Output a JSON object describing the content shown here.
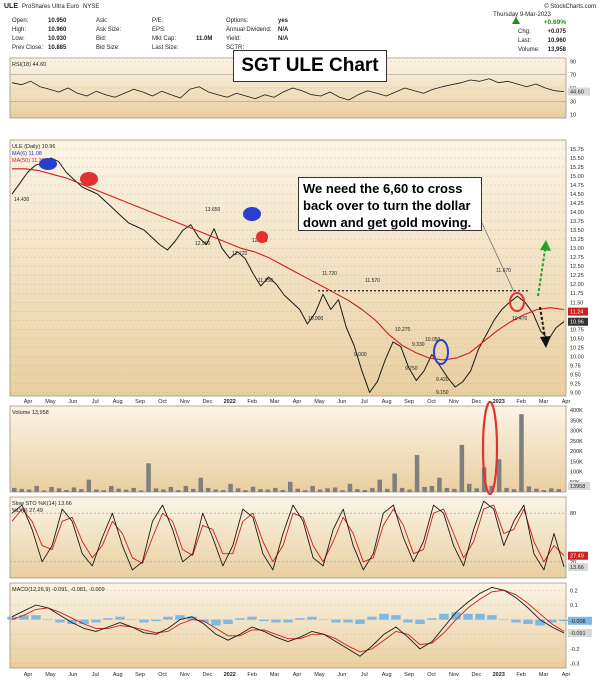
{
  "header": {
    "symbol": "ULE",
    "description": "ProShares Ultra Euro",
    "exchange": "NYSE",
    "credit": "© StockCharts.com",
    "date": "Thursday  9-Mar-2023",
    "quotes": [
      {
        "label": "Open:",
        "value": "10.950"
      },
      {
        "label": "High:",
        "value": "10.960"
      },
      {
        "label": "Low:",
        "value": "10.930"
      },
      {
        "label": "Prev Close:",
        "value": "10.885"
      },
      {
        "label": "Ask:",
        "value": ""
      },
      {
        "label": "Ask Size:",
        "value": ""
      },
      {
        "label": "Bid:",
        "value": ""
      },
      {
        "label": "Bid Size:",
        "value": ""
      },
      {
        "label": "P/E:",
        "value": ""
      },
      {
        "label": "EPS:",
        "value": ""
      },
      {
        "label": "Mkt Cap:",
        "value": "11.0M"
      },
      {
        "label": "Last Size:",
        "value": ""
      },
      {
        "label": "Options:",
        "value": "yes"
      },
      {
        "label": "Annual Dividend:",
        "value": "N/A"
      },
      {
        "label": "Yield:",
        "value": "N/A"
      },
      {
        "label": "SCTR:",
        "value": ""
      }
    ],
    "change_pct": "+0.69%",
    "right_quotes": [
      {
        "label": "Chg:",
        "value": "+0.075"
      },
      {
        "label": "Last:",
        "value": "10.960"
      },
      {
        "label": "Volume:",
        "value": "13,958"
      }
    ]
  },
  "annotations": {
    "title": "SGT ULE Chart",
    "note": "We need the 6,60 to cross back over to turn the dollar down and get gold moving."
  },
  "colors": {
    "panel_bg_top": "#fbf4e6",
    "panel_bg_bottom": "#e9cfa0",
    "price": "#1a1a1a",
    "ma50": "#cc1f1f",
    "ma6": "#1f3fcc",
    "volume_bar": "#7f7f7f",
    "highlight_red": "#e53030",
    "highlight_blue": "#2a3fd0",
    "arrow_up": "#22a322",
    "macd_hist": "#7fb8e0",
    "ticker_fill": "#d8d8d8"
  },
  "chart_data": [
    {
      "panel": "rsi",
      "type": "line",
      "legend": [
        "RSI(18) 44.60"
      ],
      "y_ticks": [
        90,
        70,
        50,
        30,
        10
      ],
      "ylim": [
        5,
        95
      ],
      "last_value_label": "44.60",
      "series": [
        {
          "name": "RSI(18)",
          "values": [
            58,
            55,
            60,
            52,
            48,
            44,
            50,
            42,
            38,
            45,
            40,
            36,
            42,
            48,
            44,
            38,
            45,
            40,
            35,
            48,
            52,
            44,
            40,
            36,
            42,
            38,
            34,
            40,
            36,
            44,
            50,
            46,
            40,
            38,
            44,
            36,
            32,
            40,
            46,
            42,
            38,
            44,
            50,
            46,
            42,
            48,
            52,
            55,
            58,
            62,
            60,
            64,
            58,
            60,
            56,
            52,
            56,
            50,
            46,
            44.6
          ]
        }
      ]
    },
    {
      "panel": "price",
      "type": "line",
      "legend": [
        "ULE (Daily) 10.96",
        "MA(6) 11.08",
        "MA(50) 11.30"
      ],
      "x_ticks": [
        "Apr",
        "May",
        "Jun",
        "Jul",
        "Aug",
        "Sep",
        "Oct",
        "Nov",
        "Dec",
        "2022",
        "Feb",
        "Mar",
        "Apr",
        "May",
        "Jun",
        "Jul",
        "Aug",
        "Sep",
        "Oct",
        "Nov",
        "Dec",
        "2023",
        "Feb",
        "Mar",
        "Apr"
      ],
      "y_ticks": [
        "15.75",
        "15.50",
        "15.25",
        "15.00",
        "14.75",
        "14.50",
        "14.25",
        "14.00",
        "13.75",
        "13.50",
        "13.25",
        "13.00",
        "12.75",
        "12.50",
        "12.25",
        "12.00",
        "11.75",
        "11.50",
        "11.25",
        "11.00",
        "10.75",
        "10.50",
        "10.25",
        "10.00",
        "9.75",
        "9.50",
        "9.25",
        "9.00"
      ],
      "ylim": [
        8.9,
        16.0
      ],
      "point_labels": [
        "14.430",
        "13.650",
        "13.540",
        "12.950",
        "12.720",
        "12.710",
        "11.950",
        "11.720",
        "11.570",
        "10.900",
        "10.275",
        "9.330",
        "9.000",
        "10.050",
        "9.750",
        "9.420",
        "9.150",
        "11.670",
        "10.470"
      ],
      "price_tags": [
        "11.24",
        "10.96"
      ],
      "series": [
        {
          "name": "ULE (Daily)",
          "values": [
            14.5,
            14.8,
            15.1,
            15.3,
            15.35,
            15.5,
            15.4,
            15.1,
            14.9,
            14.7,
            14.6,
            14.5,
            14.3,
            14.1,
            13.9,
            13.7,
            13.6,
            13.5,
            13.3,
            13.1,
            12.95,
            13.2,
            13.5,
            13.65,
            13.3,
            13.1,
            13.54,
            13.0,
            12.72,
            12.9,
            12.71,
            12.3,
            11.95,
            12.2,
            12.0,
            11.7,
            11.5,
            11.3,
            10.9,
            11.2,
            11.72,
            11.3,
            11.57,
            10.8,
            10.3,
            9.6,
            9.0,
            9.3,
            9.9,
            10.4,
            10.275,
            9.7,
            9.33,
            9.6,
            10.05,
            9.75,
            9.42,
            9.15,
            9.3,
            9.6,
            10.2,
            10.6,
            11.0,
            11.3,
            11.5,
            11.67,
            11.5,
            11.2,
            10.7,
            10.47,
            10.8,
            10.96
          ]
        },
        {
          "name": "MA(50)",
          "values": [
            15.2,
            15.2,
            15.15,
            15.05,
            14.95,
            14.8,
            14.65,
            14.5,
            14.35,
            14.2,
            14.05,
            13.9,
            13.75,
            13.6,
            13.45,
            13.3,
            13.15,
            13.0,
            12.9,
            12.75,
            12.55,
            12.35,
            12.15,
            11.95,
            11.75,
            11.55,
            11.3,
            11.0,
            10.6,
            10.3,
            10.1,
            9.95,
            9.9,
            9.95,
            10.1,
            10.4,
            10.7,
            10.95,
            11.15,
            11.3,
            11.35,
            11.3
          ]
        }
      ]
    },
    {
      "panel": "volume",
      "type": "bar",
      "legend": [
        "Volume 13,958"
      ],
      "y_ticks": [
        "400K",
        "350K",
        "300K",
        "250K",
        "200K",
        "150K",
        "100K",
        "50K"
      ],
      "ylim": [
        0,
        420000
      ],
      "last_value_label": "13958",
      "values": [
        20000,
        15000,
        12000,
        30000,
        8000,
        25000,
        18000,
        10000,
        22000,
        14000,
        60000,
        12000,
        9000,
        30000,
        16000,
        11000,
        20000,
        8000,
        140000,
        18000,
        12000,
        25000,
        9000,
        30000,
        15000,
        70000,
        20000,
        12000,
        10000,
        40000,
        18000,
        9000,
        26000,
        14000,
        12000,
        20000,
        10000,
        50000,
        16000,
        9000,
        30000,
        12000,
        18000,
        22000,
        9000,
        40000,
        14000,
        10000,
        20000,
        60000,
        15000,
        90000,
        20000,
        12000,
        180000,
        25000,
        30000,
        70000,
        20000,
        15000,
        230000,
        40000,
        18000,
        120000,
        30000,
        160000,
        20000,
        14000,
        380000,
        28000,
        16000,
        10000,
        18000,
        13958
      ]
    },
    {
      "panel": "slow-stochastic",
      "type": "line",
      "legend": [
        "Slow STO %K(14) 13.66",
        "%D(3) 27.49"
      ],
      "y_ticks": [
        80,
        20
      ],
      "ylim": [
        0,
        100
      ],
      "last_value_labels": [
        "27.49",
        "13.66"
      ],
      "series": [
        {
          "name": "%K(14)",
          "values": [
            80,
            90,
            60,
            20,
            40,
            85,
            70,
            30,
            15,
            50,
            80,
            40,
            10,
            20,
            70,
            90,
            60,
            20,
            30,
            80,
            50,
            15,
            40,
            85,
            75,
            30,
            10,
            55,
            90,
            70,
            25,
            15,
            60,
            85,
            40,
            10,
            30,
            80,
            90,
            50,
            20,
            45,
            90,
            80,
            40,
            15,
            60,
            95,
            85,
            40,
            70,
            90,
            30,
            10,
            55,
            13.66
          ]
        },
        {
          "name": "%D(3)",
          "values": [
            70,
            85,
            70,
            40,
            35,
            70,
            75,
            45,
            25,
            40,
            70,
            55,
            25,
            18,
            50,
            80,
            70,
            35,
            28,
            65,
            60,
            30,
            30,
            70,
            80,
            45,
            20,
            40,
            80,
            75,
            40,
            20,
            45,
            75,
            55,
            20,
            25,
            65,
            85,
            65,
            30,
            35,
            80,
            85,
            55,
            25,
            45,
            85,
            90,
            55,
            60,
            85,
            45,
            20,
            40,
            27.49
          ]
        }
      ]
    },
    {
      "panel": "macd",
      "type": "line",
      "legend": [
        "MACD(12,26,9) -0.091, -0.081, -0.009"
      ],
      "y_ticks": [
        0.2,
        0.1,
        0.0,
        -0.1,
        -0.2,
        -0.3
      ],
      "ylim": [
        -0.33,
        0.25
      ],
      "last_value_labels": [
        "-0.008",
        "-0.091"
      ],
      "series": [
        {
          "name": "MACD",
          "values": [
            0.02,
            0.06,
            0.1,
            0.08,
            0.03,
            -0.02,
            -0.06,
            -0.08,
            -0.05,
            -0.02,
            -0.05,
            -0.09,
            -0.1,
            -0.06,
            0.0,
            0.02,
            -0.03,
            -0.1,
            -0.14,
            -0.1,
            -0.05,
            -0.08,
            -0.12,
            -0.15,
            -0.12,
            -0.08,
            -0.1,
            -0.15,
            -0.2,
            -0.25,
            -0.18,
            -0.1,
            -0.05,
            -0.12,
            -0.2,
            -0.15,
            -0.05,
            0.05,
            0.12,
            0.18,
            0.22,
            0.2,
            0.15,
            0.08,
            0.0,
            -0.05,
            -0.091
          ]
        },
        {
          "name": "Signal",
          "values": [
            0.0,
            0.03,
            0.07,
            0.08,
            0.05,
            0.01,
            -0.03,
            -0.06,
            -0.06,
            -0.04,
            -0.05,
            -0.07,
            -0.09,
            -0.08,
            -0.03,
            0.0,
            -0.01,
            -0.06,
            -0.11,
            -0.11,
            -0.07,
            -0.07,
            -0.1,
            -0.13,
            -0.13,
            -0.1,
            -0.1,
            -0.13,
            -0.18,
            -0.22,
            -0.2,
            -0.14,
            -0.08,
            -0.1,
            -0.17,
            -0.16,
            -0.09,
            0.0,
            0.08,
            0.14,
            0.19,
            0.2,
            0.17,
            0.11,
            0.04,
            -0.03,
            -0.081
          ]
        }
      ]
    }
  ]
}
